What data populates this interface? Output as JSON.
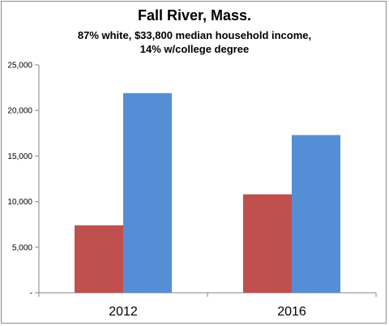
{
  "chart_data": {
    "type": "bar",
    "title": "Fall River, Mass.",
    "subtitle": [
      "87% white, $33,800 median household income,",
      "14% w/college degree"
    ],
    "categories": [
      "2012",
      "2016"
    ],
    "series": [
      {
        "values": [
          7400,
          10800
        ],
        "color": "#c0504d"
      },
      {
        "values": [
          21900,
          17300
        ],
        "color": "#558ed5"
      }
    ],
    "ylim": [
      0,
      25000
    ],
    "yticks": [
      {
        "value": 0,
        "label": "-"
      },
      {
        "value": 5000,
        "label": "5,000"
      },
      {
        "value": 10000,
        "label": "10,000"
      },
      {
        "value": 15000,
        "label": "15,000"
      },
      {
        "value": 20000,
        "label": "20,000"
      },
      {
        "value": 25000,
        "label": "25,000"
      }
    ],
    "grid": false,
    "legend": "none"
  }
}
